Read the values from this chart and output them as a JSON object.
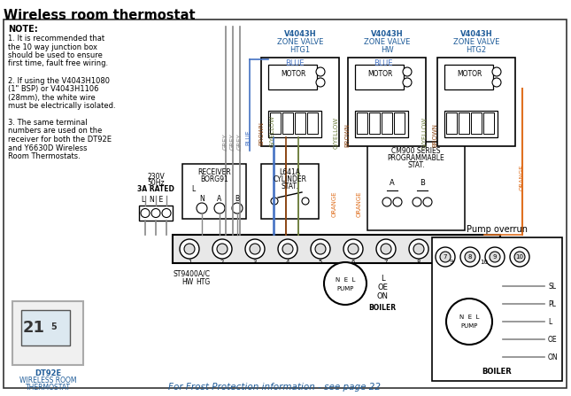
{
  "title": "Wireless room thermostat",
  "bg_color": "#ffffff",
  "text_blue": "#1F5C99",
  "text_orange": "#C55A11",
  "text_black": "#000000",
  "text_gray": "#606060",
  "wire_gray": "#888888",
  "wire_blue": "#4472C4",
  "wire_brown": "#8B4513",
  "wire_orange": "#E07020",
  "wire_gyellow": "#90EE90",
  "footer": "For Frost Protection information - see page 22",
  "pump_overrun": "Pump overrun",
  "valve1": [
    "V4043H",
    "ZONE VALVE",
    "HTG1"
  ],
  "valve2": [
    "V4043H",
    "ZONE VALVE",
    "HW"
  ],
  "valve3": [
    "V4043H",
    "ZONE VALVE",
    "HTG2"
  ],
  "dt92e": [
    "DT92E",
    "WIRELESS ROOM",
    "THERMOSTAT"
  ],
  "note_lines": [
    "NOTE:",
    "1. It is recommended that",
    "the 10 way junction box",
    "should be used to ensure",
    "first time, fault free wiring.",
    " ",
    "2. If using the V4043H1080",
    "(1\" BSP) or V4043H1106",
    "(28mm), the white wire",
    "must be electrically isolated.",
    " ",
    "3. The same terminal",
    "numbers are used on the",
    "receiver for both the DT92E",
    "and Y6630D Wireless",
    "Room Thermostats."
  ]
}
